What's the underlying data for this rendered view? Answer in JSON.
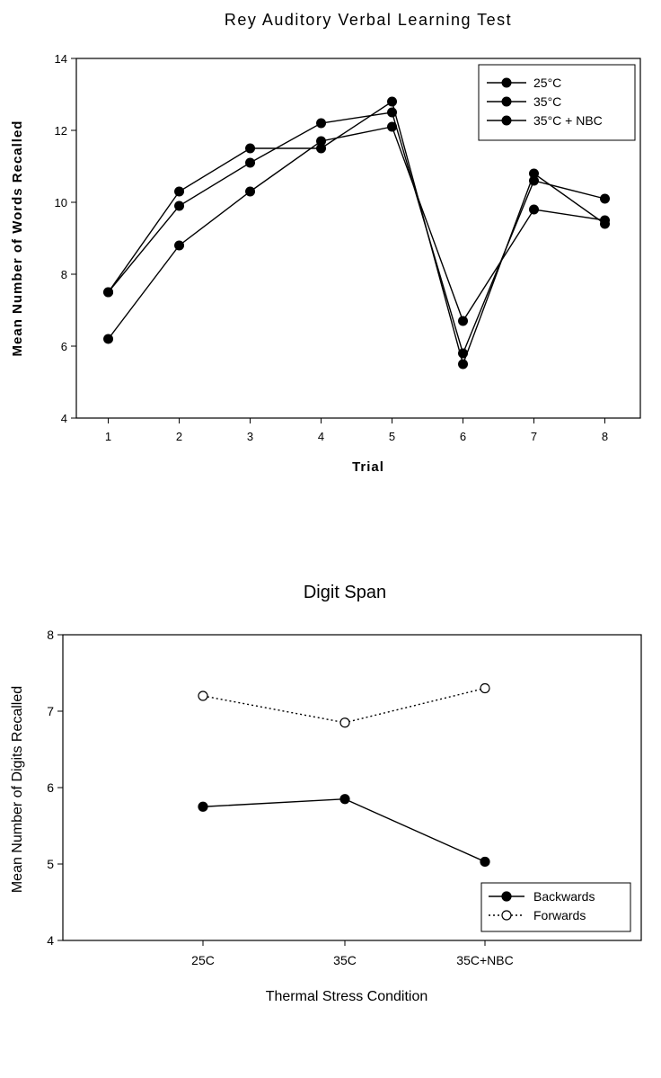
{
  "chart_data": [
    {
      "type": "line",
      "title": "Rey Auditory Verbal Learning Test",
      "xlabel": "Trial",
      "ylabel": "Mean Number of Words Recalled",
      "x": [
        1,
        2,
        3,
        4,
        5,
        6,
        7,
        8
      ],
      "xticks": [
        "1",
        "2",
        "3",
        "4",
        "5",
        "6",
        "7",
        "8"
      ],
      "ylim": [
        4,
        14
      ],
      "yticks": [
        "4",
        "6",
        "8",
        "10",
        "12",
        "14"
      ],
      "grid": false,
      "legend_position": "top-right",
      "series": [
        {
          "name": "25°C",
          "marker": "filled-circle",
          "values": [
            7.5,
            9.9,
            11.1,
            12.2,
            12.5,
            5.8,
            10.6,
            10.1
          ]
        },
        {
          "name": "35°C",
          "marker": "filled-circle",
          "values": [
            7.5,
            10.3,
            11.5,
            11.5,
            12.8,
            5.5,
            10.8,
            9.4
          ]
        },
        {
          "name": "35°C + NBC",
          "marker": "filled-circle",
          "values": [
            6.2,
            8.8,
            10.3,
            11.7,
            12.1,
            6.7,
            9.8,
            9.5
          ]
        }
      ]
    },
    {
      "type": "line",
      "title": "Digit Span",
      "xlabel": "Thermal Stress Condition",
      "ylabel": "Mean Number of Digits Recalled",
      "categories": [
        "25C",
        "35C",
        "35C+NBC"
      ],
      "ylim": [
        4,
        8
      ],
      "yticks": [
        "4",
        "5",
        "6",
        "7",
        "8"
      ],
      "grid": false,
      "legend_position": "bottom-right",
      "series": [
        {
          "name": "Backwards",
          "marker": "filled-circle",
          "line": "solid",
          "values": [
            5.75,
            5.85,
            5.03
          ]
        },
        {
          "name": "Forwards",
          "marker": "open-circle",
          "line": "dotted",
          "values": [
            7.2,
            6.85,
            7.3
          ]
        }
      ]
    }
  ]
}
